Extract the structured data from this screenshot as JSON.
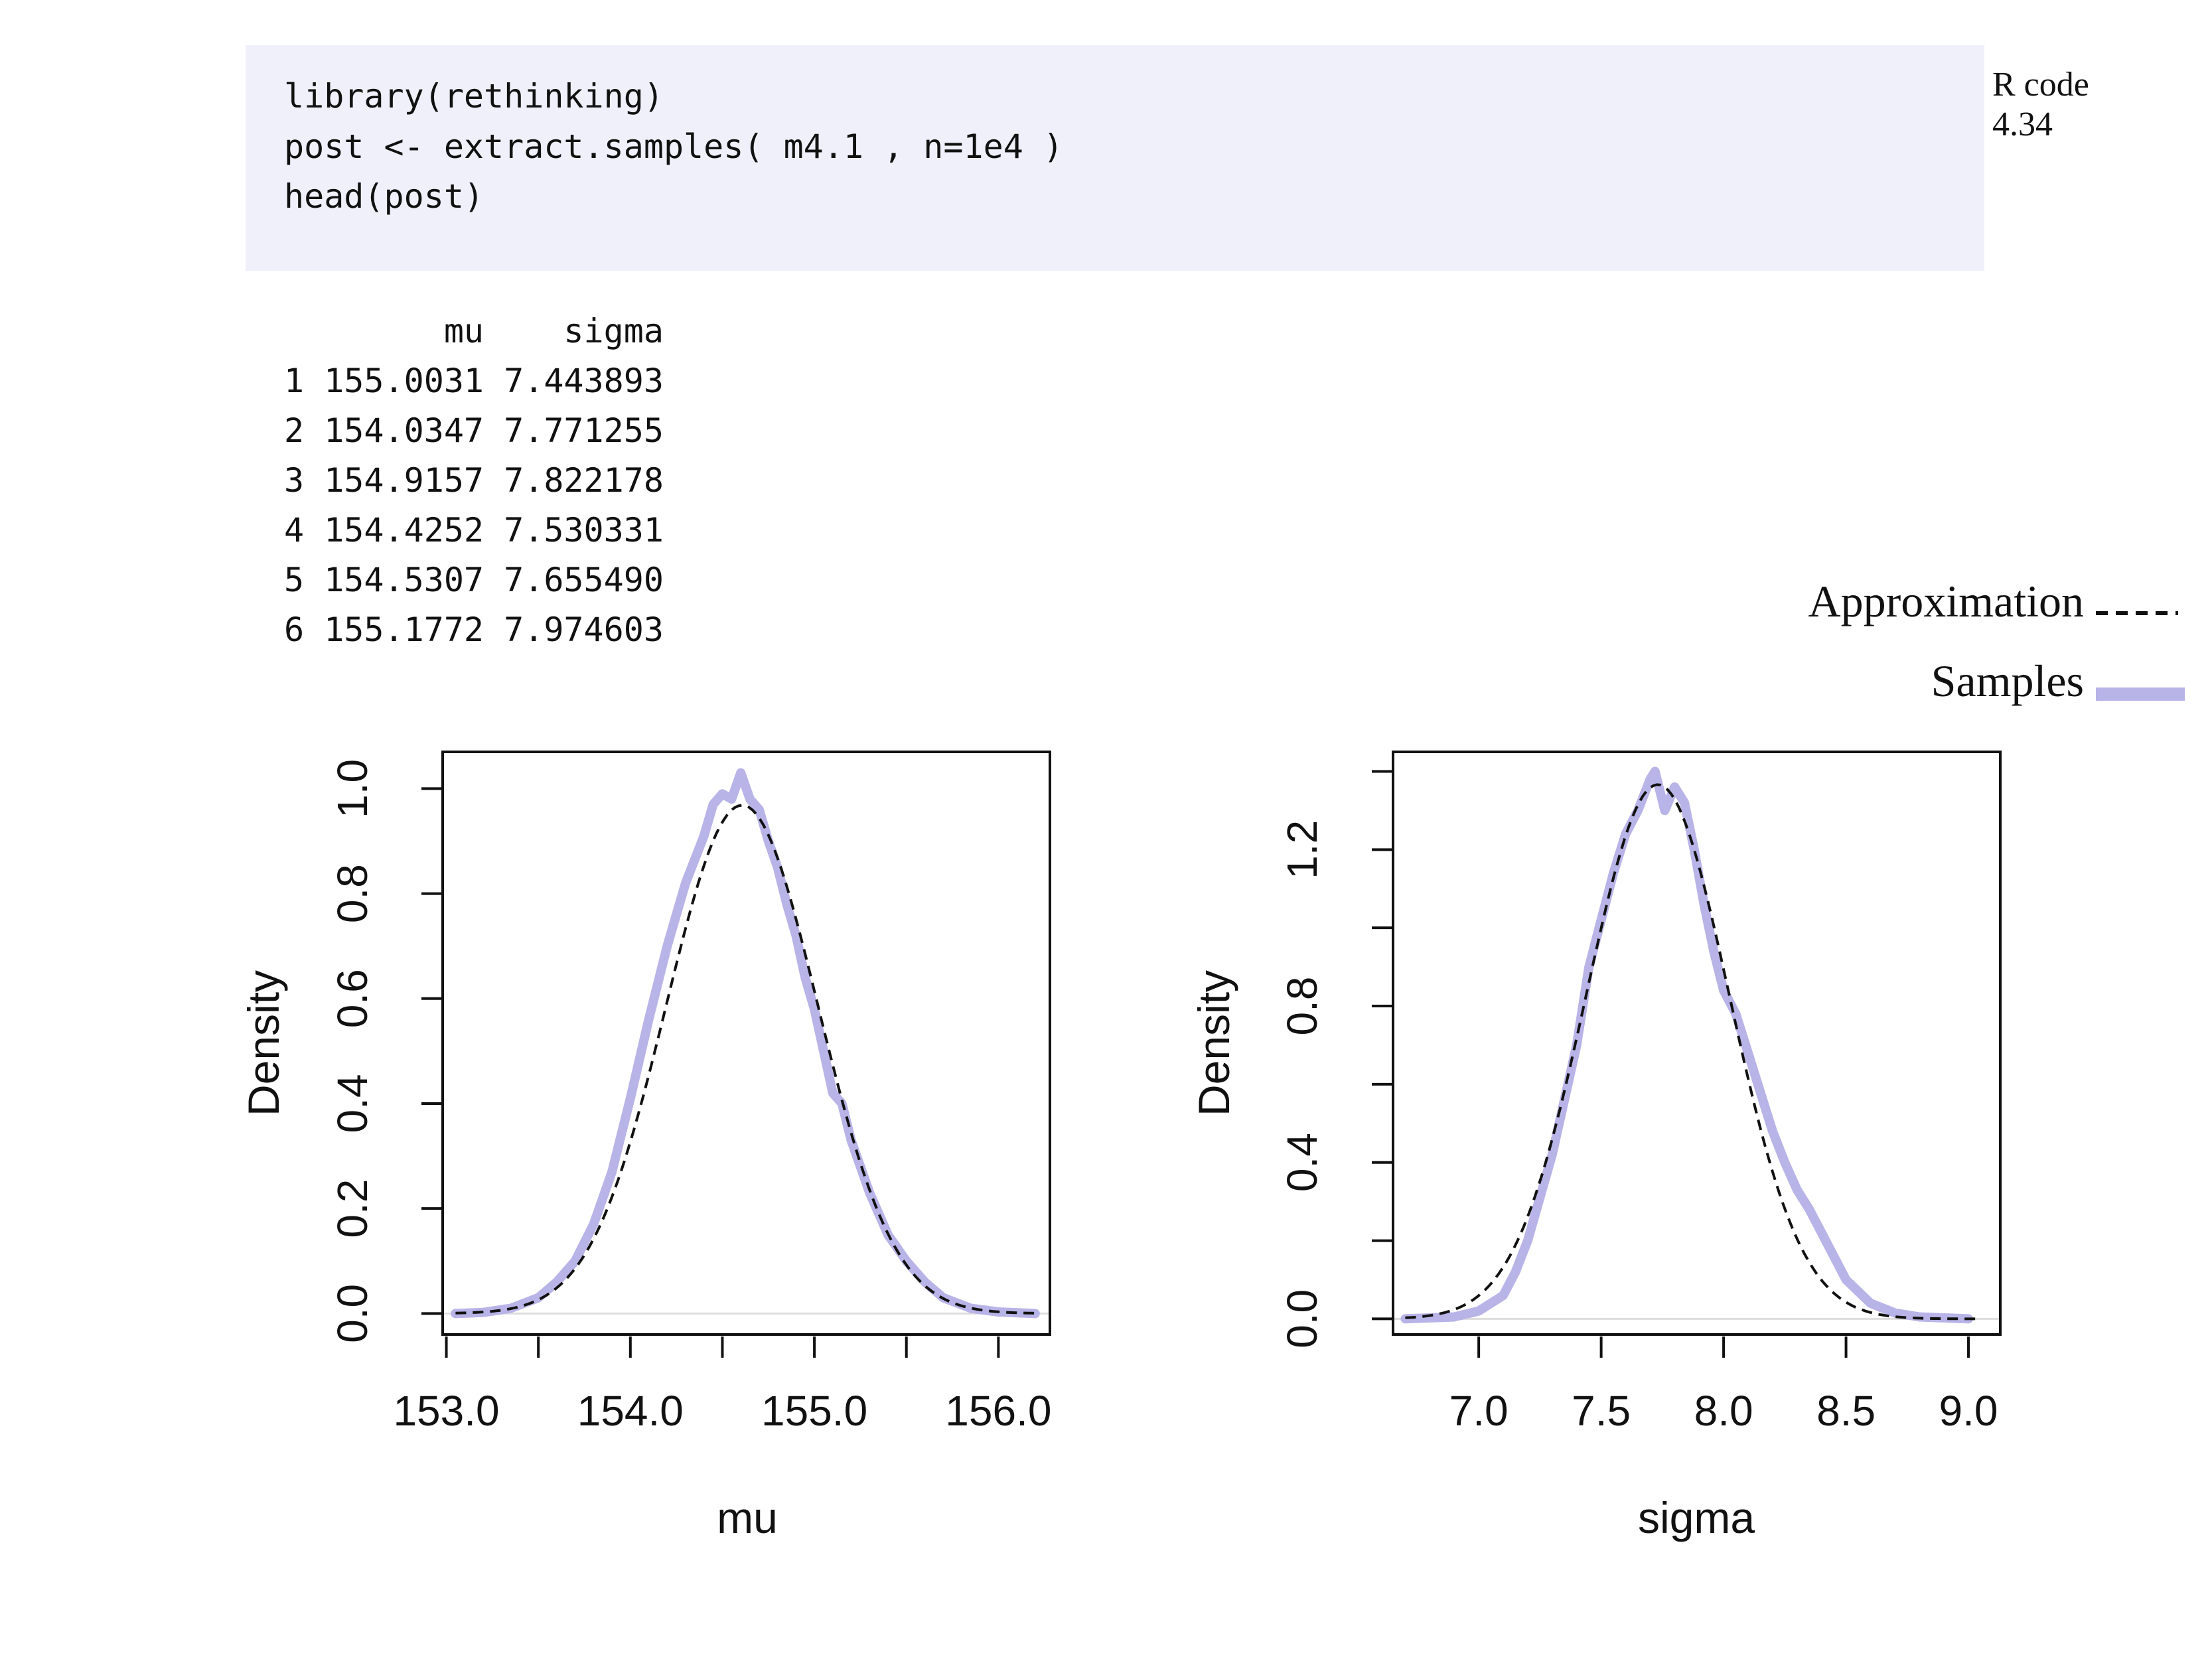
{
  "code_block": {
    "lines": [
      "library(rethinking)",
      "post <- extract.samples( m4.1 , n=1e4 )",
      "head(post)"
    ]
  },
  "rcode_label": {
    "line1": "R code",
    "line2": "4.34"
  },
  "output": {
    "lines": [
      "        mu    sigma",
      "1 155.0031 7.443893",
      "2 154.0347 7.771255",
      "3 154.9157 7.822178",
      "4 154.4252 7.530331",
      "5 154.5307 7.655490",
      "6 155.1772 7.974603"
    ]
  },
  "legend": {
    "approximation_label": "Approximation",
    "samples_label": "Samples",
    "approximation_color": "#111111",
    "samples_color": "#b8b4e8"
  },
  "chart_data": [
    {
      "type": "line",
      "title": "",
      "xlabel": "mu",
      "ylabel": "Density",
      "xlim": [
        152.98,
        156.28
      ],
      "ylim": [
        -0.04,
        1.07
      ],
      "xticks": [
        153.0,
        153.5,
        154.0,
        154.5,
        155.0,
        155.5,
        156.0
      ],
      "xtick_labels": [
        "153.0",
        "154.0",
        "155.0",
        "156.0"
      ],
      "yticks": [
        0.0,
        0.2,
        0.4,
        0.6,
        0.8,
        1.0
      ],
      "ytick_labels": [
        "0.0",
        "0.2",
        "0.4",
        "0.6",
        "0.8",
        "1.0"
      ],
      "approximation": {
        "mean": 154.607,
        "sd": 0.412,
        "x_range": [
          153.05,
          156.2
        ]
      },
      "samples": {
        "x": [
          153.05,
          153.2,
          153.35,
          153.5,
          153.6,
          153.7,
          153.8,
          153.9,
          154.0,
          154.1,
          154.2,
          154.3,
          154.4,
          154.45,
          154.5,
          154.55,
          154.6,
          154.65,
          154.7,
          154.75,
          154.8,
          154.85,
          154.9,
          154.95,
          155.0,
          155.05,
          155.1,
          155.15,
          155.2,
          155.3,
          155.4,
          155.5,
          155.6,
          155.7,
          155.85,
          156.0,
          156.2
        ],
        "y": [
          0.0,
          0.002,
          0.01,
          0.03,
          0.06,
          0.1,
          0.17,
          0.27,
          0.41,
          0.56,
          0.7,
          0.82,
          0.91,
          0.97,
          0.99,
          0.98,
          1.03,
          0.98,
          0.96,
          0.9,
          0.85,
          0.78,
          0.72,
          0.64,
          0.58,
          0.5,
          0.42,
          0.4,
          0.33,
          0.23,
          0.15,
          0.1,
          0.06,
          0.03,
          0.01,
          0.003,
          0.0
        ]
      }
    },
    {
      "type": "line",
      "title": "",
      "xlabel": "sigma",
      "ylabel": "Density",
      "xlim": [
        6.65,
        9.13
      ],
      "ylim": [
        -0.04,
        1.45
      ],
      "xticks": [
        7.0,
        7.5,
        8.0,
        8.5,
        9.0
      ],
      "xtick_labels": [
        "7.0",
        "7.5",
        "8.0",
        "8.5",
        "9.0"
      ],
      "yticks": [
        0.0,
        0.2,
        0.4,
        0.6,
        0.8,
        1.0,
        1.2,
        1.4
      ],
      "ytick_labels": [
        "0.0",
        "0.4",
        "0.8",
        "1.2"
      ],
      "approximation": {
        "mean": 7.731,
        "sd": 0.292,
        "x_range": [
          6.7,
          9.05
        ]
      },
      "samples": {
        "x": [
          6.7,
          6.9,
          7.0,
          7.1,
          7.15,
          7.2,
          7.3,
          7.4,
          7.45,
          7.5,
          7.55,
          7.6,
          7.65,
          7.7,
          7.72,
          7.76,
          7.8,
          7.84,
          7.88,
          7.92,
          7.96,
          8.0,
          8.05,
          8.1,
          8.15,
          8.2,
          8.25,
          8.3,
          8.35,
          8.4,
          8.5,
          8.6,
          8.7,
          8.8,
          9.0
        ],
        "y": [
          0.0,
          0.005,
          0.02,
          0.06,
          0.12,
          0.2,
          0.42,
          0.7,
          0.9,
          1.02,
          1.14,
          1.24,
          1.3,
          1.38,
          1.4,
          1.3,
          1.36,
          1.32,
          1.2,
          1.06,
          0.94,
          0.84,
          0.78,
          0.68,
          0.58,
          0.48,
          0.4,
          0.33,
          0.28,
          0.22,
          0.1,
          0.04,
          0.015,
          0.005,
          0.0
        ]
      }
    }
  ]
}
